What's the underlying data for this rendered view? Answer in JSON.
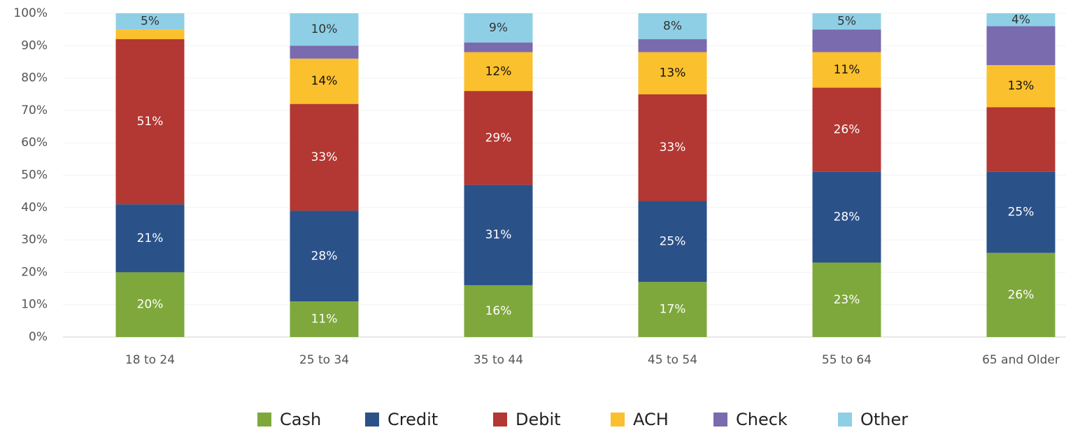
{
  "chart_data": {
    "type": "stacked_bar",
    "categories": [
      "18 to 24",
      "25 to 34",
      "35 to 44",
      "45 to 54",
      "55 to 64",
      "65 and Older"
    ],
    "series": [
      {
        "name": "Cash",
        "color": "#7ea83c",
        "values": [
          20,
          11,
          16,
          17,
          23,
          26
        ],
        "value_labels": [
          "20%",
          "11%",
          "16%",
          "17%",
          "23%",
          "26%"
        ]
      },
      {
        "name": "Credit",
        "color": "#2b5189",
        "values": [
          21,
          28,
          31,
          25,
          28,
          25
        ],
        "value_labels": [
          "21%",
          "28%",
          "31%",
          "25%",
          "28%",
          "25%"
        ]
      },
      {
        "name": "Debit",
        "color": "#b33732",
        "values": [
          51,
          33,
          29,
          33,
          26,
          20
        ],
        "value_labels": [
          "51%",
          "33%",
          "29%",
          "33%",
          "26%",
          null
        ]
      },
      {
        "name": "ACH",
        "color": "#fbc02d",
        "values": [
          3,
          14,
          12,
          13,
          11,
          13
        ],
        "value_labels": [
          null,
          "14%",
          "12%",
          "13%",
          "11%",
          "13%"
        ]
      },
      {
        "name": "Check",
        "color": "#7a6aae",
        "values": [
          0,
          4,
          3,
          4,
          7,
          12
        ],
        "value_labels": [
          null,
          null,
          null,
          null,
          null,
          null
        ]
      },
      {
        "name": "Other",
        "color": "#8ecfe6",
        "values": [
          5,
          10,
          9,
          8,
          5,
          4
        ],
        "value_labels": [
          "5%",
          "10%",
          "9%",
          "8%",
          "5%",
          "4%"
        ]
      }
    ],
    "ylim": [
      0,
      100
    ],
    "yticks": [
      {
        "value": 0,
        "label": "0%"
      },
      {
        "value": 10,
        "label": "10%"
      },
      {
        "value": 20,
        "label": "20%"
      },
      {
        "value": 30,
        "label": "30%"
      },
      {
        "value": 40,
        "label": "40%"
      },
      {
        "value": 50,
        "label": "50%"
      },
      {
        "value": 60,
        "label": "60%"
      },
      {
        "value": 70,
        "label": "70%"
      },
      {
        "value": 80,
        "label": "80%"
      },
      {
        "value": 90,
        "label": "90%"
      },
      {
        "value": 100,
        "label": "100%"
      }
    ],
    "grid": true,
    "legend": "bottom"
  }
}
